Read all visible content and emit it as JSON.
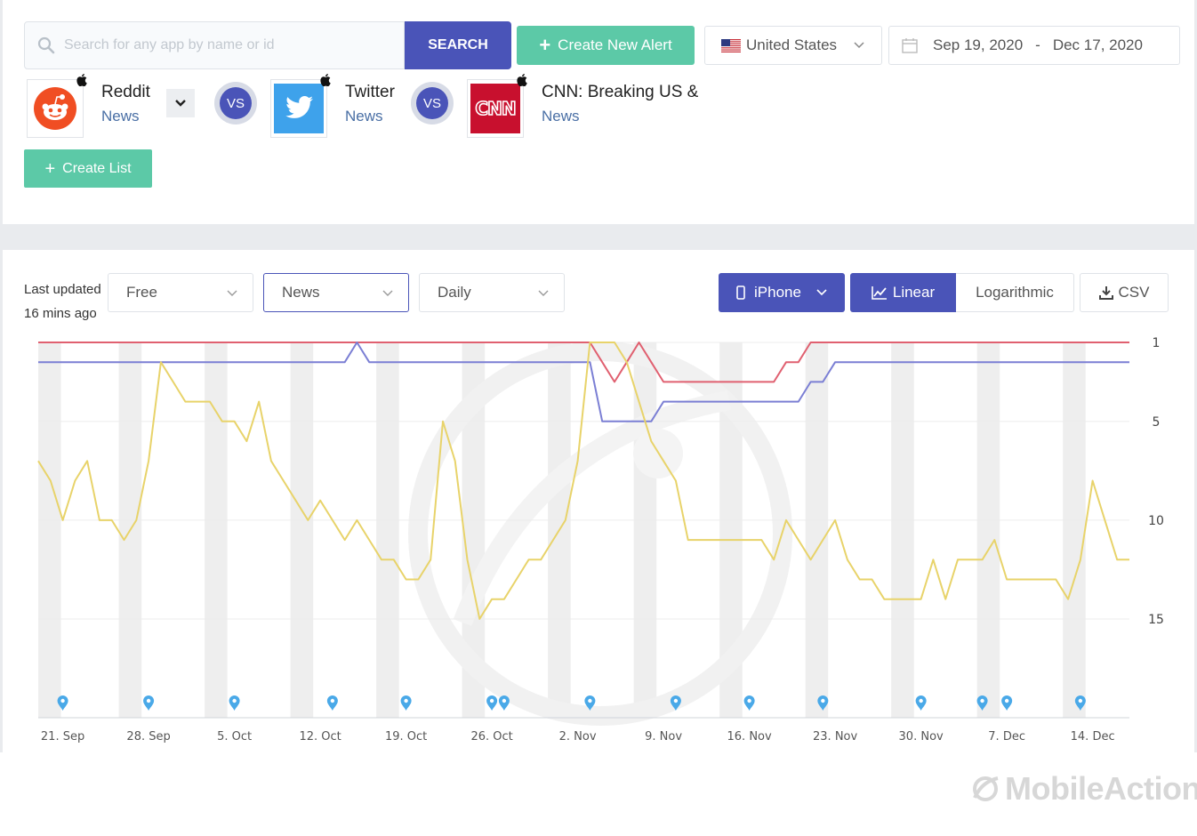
{
  "search": {
    "placeholder": "Search for any app by name or id",
    "button_label": "SEARCH"
  },
  "alert": {
    "label": "Create New Alert"
  },
  "country": {
    "label": "United States"
  },
  "date_range": {
    "start": "Sep 19, 2020",
    "separator": "-",
    "end": "Dec 17, 2020"
  },
  "apps": [
    {
      "name": "Reddit",
      "category": "News"
    },
    {
      "name": "Twitter",
      "category": "News"
    },
    {
      "name": "CNN: Breaking US &",
      "category": "News"
    }
  ],
  "vs_label": "VS",
  "create_list": {
    "label": "Create List"
  },
  "controls": {
    "last_updated": "Last updated",
    "updated_ago": "16 mins ago",
    "price_filter": "Free",
    "category_filter": "News",
    "interval_filter": "Daily",
    "device": "iPhone",
    "scale_linear": "Linear",
    "scale_log": "Logarithmic",
    "export": "CSV"
  },
  "brand": {
    "name": "MobileAction"
  },
  "colors": {
    "primary": "#4a54b8",
    "accent_green": "#5cc9a7",
    "reddit_line": "#e8d36a",
    "twitter_line": "#7b7fd4",
    "cnn_line": "#e06070"
  },
  "chart_data": {
    "type": "line",
    "x": [
      "Sep 19",
      "Sep 20",
      "Sep 21",
      "Sep 22",
      "Sep 23",
      "Sep 24",
      "Sep 25",
      "Sep 26",
      "Sep 27",
      "Sep 28",
      "Sep 29",
      "Sep 30",
      "Oct 1",
      "Oct 2",
      "Oct 3",
      "Oct 4",
      "Oct 5",
      "Oct 6",
      "Oct 7",
      "Oct 8",
      "Oct 9",
      "Oct 10",
      "Oct 11",
      "Oct 12",
      "Oct 13",
      "Oct 14",
      "Oct 15",
      "Oct 16",
      "Oct 17",
      "Oct 18",
      "Oct 19",
      "Oct 20",
      "Oct 21",
      "Oct 22",
      "Oct 23",
      "Oct 24",
      "Oct 25",
      "Oct 26",
      "Oct 27",
      "Oct 28",
      "Oct 29",
      "Oct 30",
      "Oct 31",
      "Nov 1",
      "Nov 2",
      "Nov 3",
      "Nov 4",
      "Nov 5",
      "Nov 6",
      "Nov 7",
      "Nov 8",
      "Nov 9",
      "Nov 10",
      "Nov 11",
      "Nov 12",
      "Nov 13",
      "Nov 14",
      "Nov 15",
      "Nov 16",
      "Nov 17",
      "Nov 18",
      "Nov 19",
      "Nov 20",
      "Nov 21",
      "Nov 22",
      "Nov 23",
      "Nov 24",
      "Nov 25",
      "Nov 26",
      "Nov 27",
      "Nov 28",
      "Nov 29",
      "Nov 30",
      "Dec 1",
      "Dec 2",
      "Dec 3",
      "Dec 4",
      "Dec 5",
      "Dec 6",
      "Dec 7",
      "Dec 8",
      "Dec 9",
      "Dec 10",
      "Dec 11",
      "Dec 12",
      "Dec 13",
      "Dec 14",
      "Dec 15",
      "Dec 16",
      "Dec 17"
    ],
    "series": [
      {
        "name": "Reddit",
        "color": "#e8d36a",
        "values": [
          7,
          8,
          10,
          8,
          7,
          10,
          10,
          11,
          10,
          7,
          2,
          3,
          4,
          4,
          4,
          5,
          5,
          6,
          4,
          7,
          8,
          9,
          10,
          9,
          10,
          11,
          10,
          11,
          12,
          12,
          13,
          13,
          12,
          5,
          7,
          12,
          15,
          14,
          14,
          13,
          12,
          12,
          11,
          10,
          7,
          1,
          1,
          1,
          2,
          4,
          6,
          7,
          8,
          11,
          11,
          11,
          11,
          11,
          11,
          11,
          12,
          10,
          11,
          12,
          11,
          10,
          12,
          13,
          13,
          14,
          14,
          14,
          14,
          12,
          14,
          12,
          12,
          12,
          11,
          13,
          13,
          13,
          13,
          13,
          14,
          12,
          8,
          10,
          12,
          12
        ]
      },
      {
        "name": "Twitter",
        "color": "#7b7fd4",
        "values": [
          2,
          2,
          2,
          2,
          2,
          2,
          2,
          2,
          2,
          2,
          2,
          2,
          2,
          2,
          2,
          2,
          2,
          2,
          2,
          2,
          2,
          2,
          2,
          2,
          2,
          2,
          1,
          2,
          2,
          2,
          2,
          2,
          2,
          2,
          2,
          2,
          2,
          2,
          2,
          2,
          2,
          2,
          2,
          2,
          2,
          2,
          5,
          5,
          5,
          5,
          5,
          4,
          4,
          4,
          4,
          4,
          4,
          4,
          4,
          4,
          4,
          4,
          4,
          3,
          3,
          2,
          2,
          2,
          2,
          2,
          2,
          2,
          2,
          2,
          2,
          2,
          2,
          2,
          2,
          2,
          2,
          2,
          2,
          2,
          2,
          2,
          2,
          2,
          2,
          2
        ]
      },
      {
        "name": "CNN: Breaking US &",
        "color": "#e06070",
        "values": [
          1,
          1,
          1,
          1,
          1,
          1,
          1,
          1,
          1,
          1,
          1,
          1,
          1,
          1,
          1,
          1,
          1,
          1,
          1,
          1,
          1,
          1,
          1,
          1,
          1,
          1,
          1,
          1,
          1,
          1,
          1,
          1,
          1,
          1,
          1,
          1,
          1,
          1,
          1,
          1,
          1,
          1,
          1,
          1,
          1,
          1,
          2,
          3,
          2,
          1,
          2,
          3,
          3,
          3,
          3,
          3,
          3,
          3,
          3,
          3,
          3,
          2,
          2,
          1,
          1,
          1,
          1,
          1,
          1,
          1,
          1,
          1,
          1,
          1,
          1,
          1,
          1,
          1,
          1,
          1,
          1,
          1,
          1,
          1,
          1,
          1,
          1,
          1,
          1,
          1
        ]
      }
    ],
    "xtick_labels": [
      "21. Sep",
      "28. Sep",
      "5. Oct",
      "12. Oct",
      "19. Oct",
      "26. Oct",
      "2. Nov",
      "9. Nov",
      "16. Nov",
      "23. Nov",
      "30. Nov",
      "7. Dec",
      "14. Dec"
    ],
    "ytick_labels": [
      "1",
      "5",
      "10",
      "15"
    ],
    "y_reversed": true,
    "ylim": [
      1,
      20
    ],
    "weekend_shading": true,
    "event_markers": [
      "Sep 21",
      "Sep 28",
      "Oct 5",
      "Oct 13",
      "Oct 19",
      "Oct 26",
      "Oct 27",
      "Nov 3",
      "Nov 10",
      "Nov 16",
      "Nov 22",
      "Nov 30",
      "Dec 5",
      "Dec 7",
      "Dec 13"
    ]
  }
}
